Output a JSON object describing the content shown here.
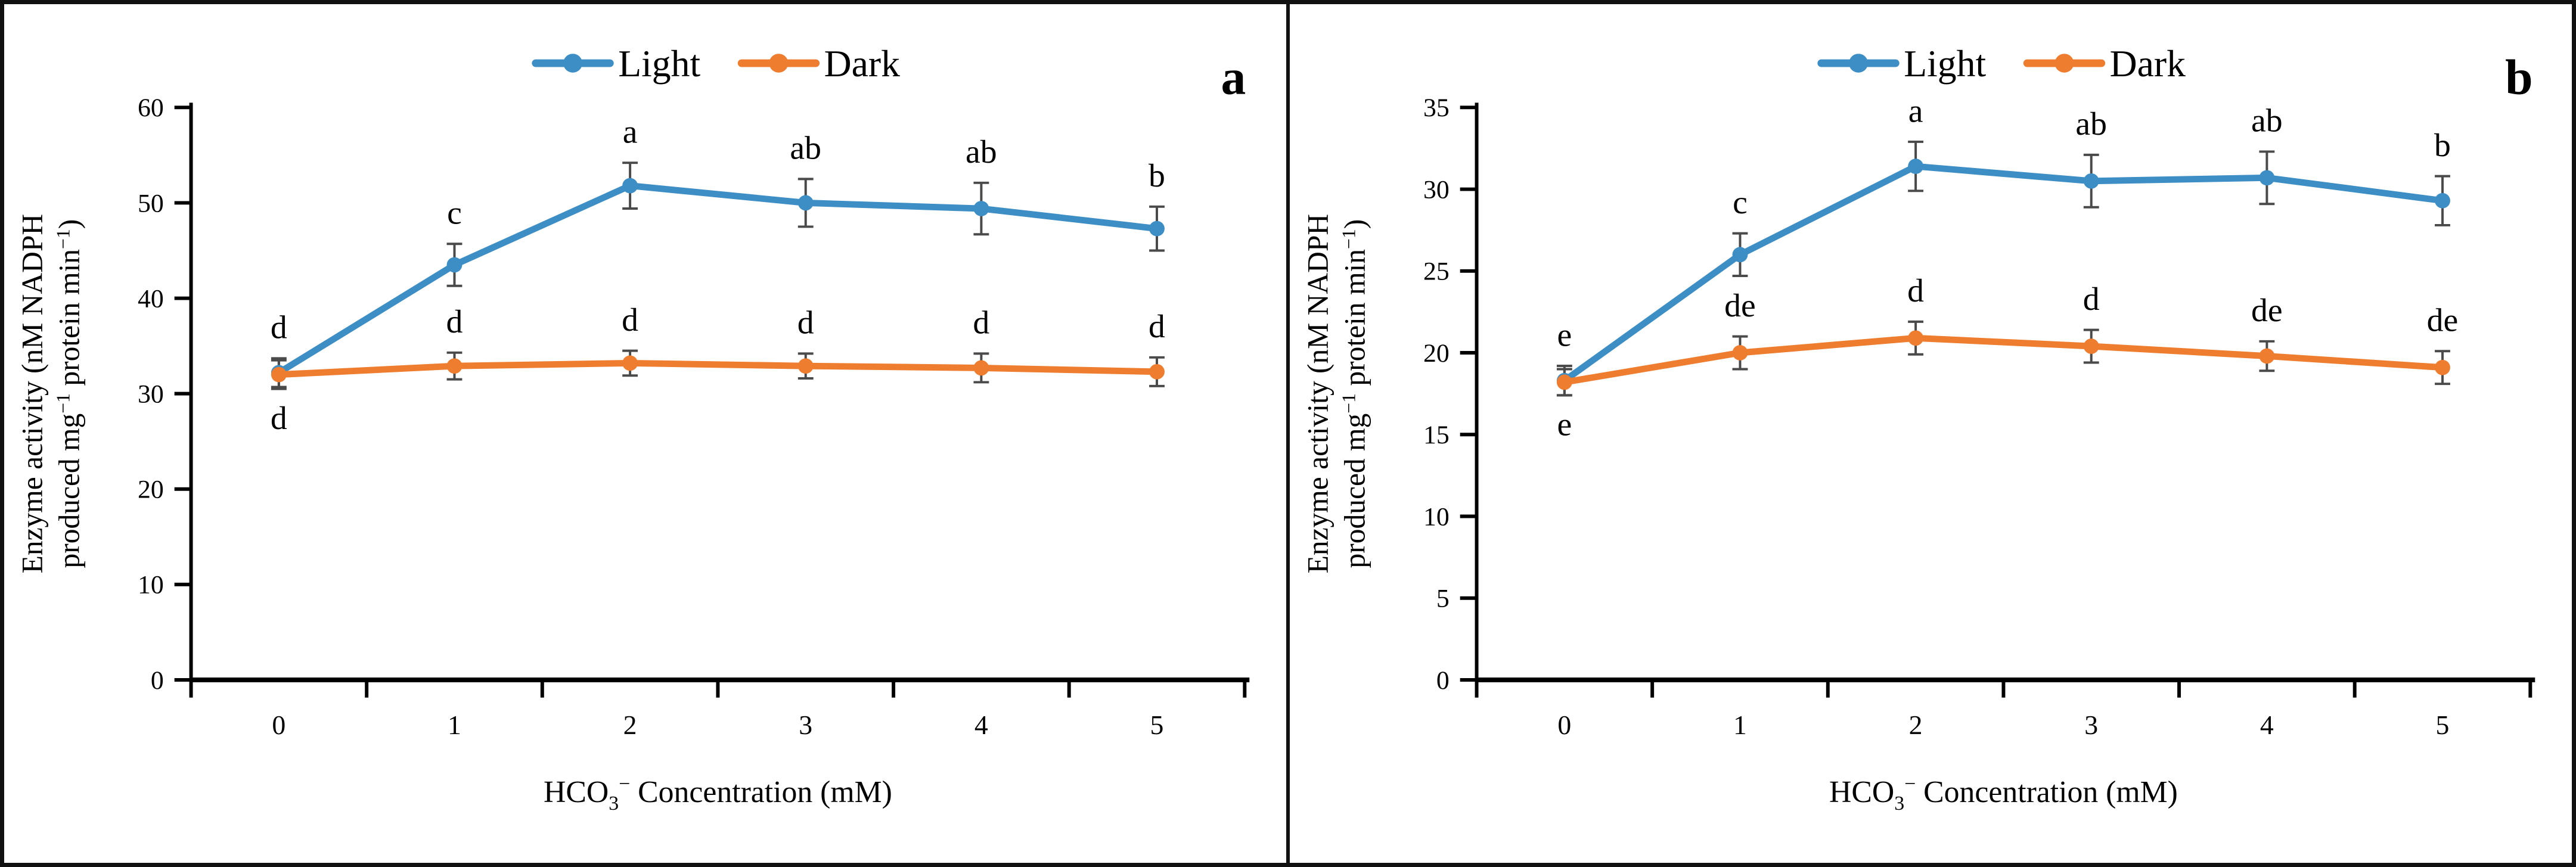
{
  "figure": {
    "background": "#ffffff",
    "border_color": "#101010",
    "error_bar_color": "#4a4a4a",
    "axis_color": "#000000"
  },
  "chart_data": [
    {
      "type": "line",
      "panel_label": "a",
      "legend_position": "top-center",
      "grid": false,
      "x_categories": [
        "0",
        "1",
        "2",
        "3",
        "4",
        "5"
      ],
      "ytick_labels": [
        "0",
        "10",
        "20",
        "30",
        "40",
        "50",
        "60"
      ],
      "ylim": [
        0,
        60
      ],
      "ytick_step": 10,
      "xlabel_tokens": [
        {
          "t": "HCO"
        },
        {
          "sub": "3"
        },
        {
          "sup": "−"
        },
        {
          "t": " Concentration (mM)"
        }
      ],
      "ylabel_line1": "Enzyme activity (nM NADPH",
      "ylabel_line2_tokens": [
        {
          "t": "produced mg"
        },
        {
          "sup": "−1"
        },
        {
          "t": " protein min"
        },
        {
          "sup": "−1"
        },
        {
          "t": ")"
        }
      ],
      "series": [
        {
          "name": "Light",
          "color": "#3E8EC6",
          "values": [
            32.2,
            43.5,
            51.8,
            50.0,
            49.4,
            47.3
          ],
          "errors": [
            1.5,
            2.2,
            2.4,
            2.5,
            2.7,
            2.3
          ],
          "letters": [
            "d",
            "c",
            "a",
            "ab",
            "ab",
            "b"
          ],
          "letter_side": [
            "above",
            "above",
            "above",
            "above",
            "above",
            "above"
          ]
        },
        {
          "name": "Dark",
          "color": "#EF7D2F",
          "values": [
            32.0,
            32.9,
            33.2,
            32.9,
            32.7,
            32.3
          ],
          "errors": [
            1.5,
            1.4,
            1.3,
            1.3,
            1.5,
            1.5
          ],
          "letters": [
            "d",
            "d",
            "d",
            "d",
            "d",
            "d"
          ],
          "letter_side": [
            "below",
            "above",
            "above",
            "above",
            "above",
            "above"
          ]
        }
      ]
    },
    {
      "type": "line",
      "panel_label": "b",
      "legend_position": "top-center",
      "grid": false,
      "x_categories": [
        "0",
        "1",
        "2",
        "3",
        "4",
        "5"
      ],
      "ytick_labels": [
        "0",
        "5",
        "10",
        "15",
        "20",
        "25",
        "30",
        "35"
      ],
      "ylim": [
        0,
        35
      ],
      "ytick_step": 5,
      "xlabel_tokens": [
        {
          "t": "HCO"
        },
        {
          "sub": "3"
        },
        {
          "sup": "−"
        },
        {
          "t": " Concentration (mM)"
        }
      ],
      "ylabel_line1": "Enzyme activity (nM NADPH",
      "ylabel_line2_tokens": [
        {
          "t": "produced mg"
        },
        {
          "sup": "−1"
        },
        {
          "t": " protein min"
        },
        {
          "sup": "−1"
        },
        {
          "t": ")"
        }
      ],
      "series": [
        {
          "name": "Light",
          "color": "#3E8EC6",
          "values": [
            18.3,
            26.0,
            31.4,
            30.5,
            30.7,
            29.3
          ],
          "errors": [
            0.9,
            1.3,
            1.5,
            1.6,
            1.6,
            1.5
          ],
          "letters": [
            "e",
            "c",
            "a",
            "ab",
            "ab",
            "b"
          ],
          "letter_side": [
            "above",
            "above",
            "above",
            "above",
            "above",
            "above"
          ]
        },
        {
          "name": "Dark",
          "color": "#EF7D2F",
          "values": [
            18.2,
            20.0,
            20.9,
            20.4,
            19.8,
            19.1
          ],
          "errors": [
            0.8,
            1.0,
            1.0,
            1.0,
            0.9,
            1.0
          ],
          "letters": [
            "e",
            "de",
            "d",
            "d",
            "de",
            "de"
          ],
          "letter_side": [
            "below",
            "above",
            "above",
            "above",
            "above",
            "above"
          ]
        }
      ]
    }
  ]
}
